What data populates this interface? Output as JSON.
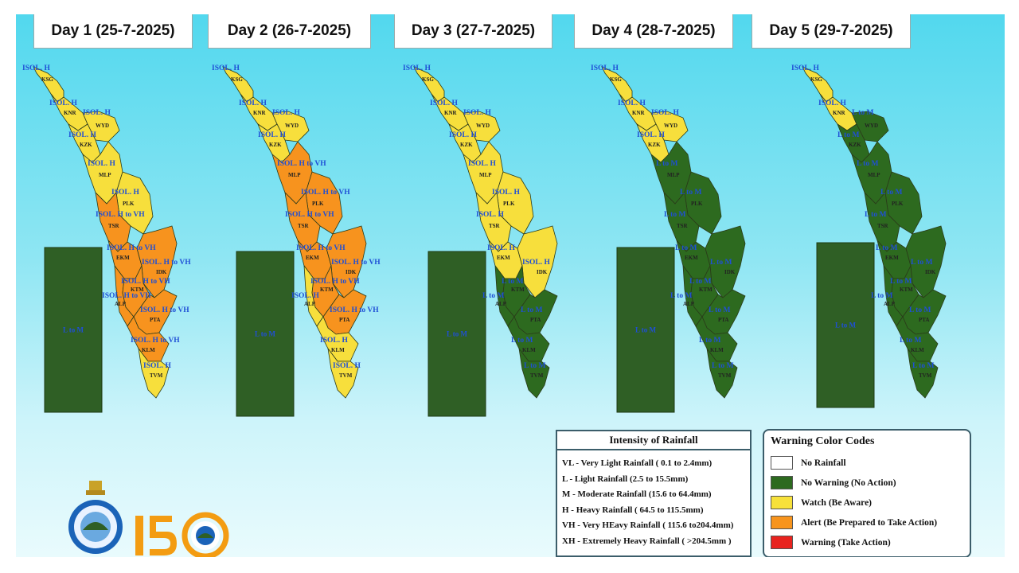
{
  "days": [
    {
      "title": "Day 1 (25-7-2025)",
      "sea_label": "L to M",
      "districts": [
        {
          "code": "KSG",
          "warn": "ISOL. H",
          "level": "watch"
        },
        {
          "code": "KNR",
          "warn": "ISOL. H",
          "level": "watch"
        },
        {
          "code": "WYD",
          "warn": "ISOL. H",
          "level": "watch"
        },
        {
          "code": "KZK",
          "warn": "ISOL. H",
          "level": "watch"
        },
        {
          "code": "MLP",
          "warn": "ISOL. H",
          "level": "watch"
        },
        {
          "code": "PLK",
          "warn": "ISOL. H",
          "level": "watch"
        },
        {
          "code": "TSR",
          "warn": "ISOL. H to VH",
          "level": "alert"
        },
        {
          "code": "EKM",
          "warn": "ISOL. H to VH",
          "level": "alert"
        },
        {
          "code": "IDK",
          "warn": "ISOL. H to VH",
          "level": "alert"
        },
        {
          "code": "KTM",
          "warn": "ISOL. H to VH",
          "level": "alert"
        },
        {
          "code": "ALP",
          "warn": "ISOL. H to VH",
          "level": "alert"
        },
        {
          "code": "PTA",
          "warn": "ISOL. H to VH",
          "level": "alert"
        },
        {
          "code": "KLM",
          "warn": "ISOL. H to VH",
          "level": "alert"
        },
        {
          "code": "TVM",
          "warn": "ISOL. H",
          "level": "watch"
        }
      ]
    },
    {
      "title": "Day 2 (26-7-2025)",
      "sea_label": "L to M",
      "districts": [
        {
          "code": "KSG",
          "warn": "ISOL. H",
          "level": "watch"
        },
        {
          "code": "KNR",
          "warn": "ISOL. H",
          "level": "watch"
        },
        {
          "code": "WYD",
          "warn": "ISOL. H",
          "level": "watch"
        },
        {
          "code": "KZK",
          "warn": "ISOL. H",
          "level": "watch"
        },
        {
          "code": "MLP",
          "warn": "ISOL. H to VH",
          "level": "alert"
        },
        {
          "code": "PLK",
          "warn": "ISOL. H to VH",
          "level": "alert"
        },
        {
          "code": "TSR",
          "warn": "ISOL. H to VH",
          "level": "alert"
        },
        {
          "code": "EKM",
          "warn": "ISOL. H to VH",
          "level": "alert"
        },
        {
          "code": "IDK",
          "warn": "ISOL. H to VH",
          "level": "alert"
        },
        {
          "code": "KTM",
          "warn": "ISOL. H to VH",
          "level": "alert"
        },
        {
          "code": "ALP",
          "warn": "ISOL. H",
          "level": "watch"
        },
        {
          "code": "PTA",
          "warn": "ISOL. H to VH",
          "level": "alert"
        },
        {
          "code": "KLM",
          "warn": "ISOL. H",
          "level": "watch"
        },
        {
          "code": "TVM",
          "warn": "ISOL. H",
          "level": "watch"
        }
      ]
    },
    {
      "title": "Day 3 (27-7-2025)",
      "sea_label": "L to M",
      "districts": [
        {
          "code": "KSG",
          "warn": "ISOL. H",
          "level": "watch"
        },
        {
          "code": "KNR",
          "warn": "ISOL. H",
          "level": "watch"
        },
        {
          "code": "WYD",
          "warn": "ISOL. H",
          "level": "watch"
        },
        {
          "code": "KZK",
          "warn": "ISOL. H",
          "level": "watch"
        },
        {
          "code": "MLP",
          "warn": "ISOL. H",
          "level": "watch"
        },
        {
          "code": "PLK",
          "warn": "ISOL. H",
          "level": "watch"
        },
        {
          "code": "TSR",
          "warn": "ISOL. H",
          "level": "watch"
        },
        {
          "code": "EKM",
          "warn": "ISOL. H",
          "level": "watch"
        },
        {
          "code": "IDK",
          "warn": "ISOL. H",
          "level": "watch"
        },
        {
          "code": "KTM",
          "warn": "L to M",
          "level": "nowarn"
        },
        {
          "code": "ALP",
          "warn": "L to M",
          "level": "nowarn"
        },
        {
          "code": "PTA",
          "warn": "L to M",
          "level": "nowarn"
        },
        {
          "code": "KLM",
          "warn": "L to M",
          "level": "nowarn"
        },
        {
          "code": "TVM",
          "warn": "L to M",
          "level": "nowarn"
        }
      ]
    },
    {
      "title": "Day 4 (28-7-2025)",
      "sea_label": "L to M",
      "districts": [
        {
          "code": "KSG",
          "warn": "ISOL. H",
          "level": "watch"
        },
        {
          "code": "KNR",
          "warn": "ISOL. H",
          "level": "watch"
        },
        {
          "code": "WYD",
          "warn": "ISOL. H",
          "level": "watch"
        },
        {
          "code": "KZK",
          "warn": "ISOL. H",
          "level": "watch"
        },
        {
          "code": "MLP",
          "warn": "L to M",
          "level": "nowarn"
        },
        {
          "code": "PLK",
          "warn": "L to M",
          "level": "nowarn"
        },
        {
          "code": "TSR",
          "warn": "L to M",
          "level": "nowarn"
        },
        {
          "code": "EKM",
          "warn": "L to M",
          "level": "nowarn"
        },
        {
          "code": "IDK",
          "warn": "L to M",
          "level": "nowarn"
        },
        {
          "code": "KTM",
          "warn": "L to M",
          "level": "nowarn"
        },
        {
          "code": "ALP",
          "warn": "L to M",
          "level": "nowarn"
        },
        {
          "code": "PTA",
          "warn": "L to M",
          "level": "nowarn"
        },
        {
          "code": "KLM",
          "warn": "L to M",
          "level": "nowarn"
        },
        {
          "code": "TVM",
          "warn": "L to M",
          "level": "nowarn"
        }
      ]
    },
    {
      "title": "Day 5 (29-7-2025)",
      "sea_label": "L to M",
      "districts": [
        {
          "code": "KSG",
          "warn": "ISOL. H",
          "level": "watch"
        },
        {
          "code": "KNR",
          "warn": "ISOL. H",
          "level": "watch"
        },
        {
          "code": "WYD",
          "warn": "L to M",
          "level": "nowarn"
        },
        {
          "code": "KZK",
          "warn": "L to M",
          "level": "nowarn"
        },
        {
          "code": "MLP",
          "warn": "L to M",
          "level": "nowarn"
        },
        {
          "code": "PLK",
          "warn": "L to M",
          "level": "nowarn"
        },
        {
          "code": "TSR",
          "warn": "L to M",
          "level": "nowarn"
        },
        {
          "code": "EKM",
          "warn": "L to M",
          "level": "nowarn"
        },
        {
          "code": "IDK",
          "warn": "L to M",
          "level": "nowarn"
        },
        {
          "code": "KTM",
          "warn": "L to M",
          "level": "nowarn"
        },
        {
          "code": "ALP",
          "warn": "L to M",
          "level": "nowarn"
        },
        {
          "code": "PTA",
          "warn": "L to M",
          "level": "nowarn"
        },
        {
          "code": "KLM",
          "warn": "L to M",
          "level": "nowarn"
        },
        {
          "code": "TVM",
          "warn": "L to M",
          "level": "nowarn"
        }
      ]
    }
  ],
  "intensity": {
    "title": "Intensity of Rainfall",
    "items": [
      "VL - Very Light Rainfall ( 0.1 to 2.4mm)",
      "L  - Light Rainfall (2.5 to 15.5mm)",
      "M  - Moderate Rainfall (15.6 to 64.4mm)",
      "H  - Heavy Rainfall ( 64.5 to 115.5mm)",
      "VH - Very HEavy Rainfall ( 115.6 to204.4mm)",
      "XH - Extremely Heavy Rainfall ( >204.5mm )"
    ]
  },
  "codes": {
    "title": "Warning Color Codes",
    "items": [
      {
        "label": "No Rainfall",
        "color": "#ffffff",
        "key": "norain"
      },
      {
        "label": "No Warning (No Action)",
        "color": "#2d6a1f",
        "key": "nowarn"
      },
      {
        "label": "Watch (Be Aware)",
        "color": "#f7e13a",
        "key": "watch"
      },
      {
        "label": "Alert (Be Prepared to Take Action)",
        "color": "#f7941d",
        "key": "alert"
      },
      {
        "label": "Warning (Take Action)",
        "color": "#e8231e",
        "key": "warning"
      }
    ]
  },
  "colors": {
    "nowarn": "#2d6a1f",
    "watch": "#f7df3c",
    "alert": "#f7931e",
    "sea": "#2f5f25",
    "border": "#2a3a1a"
  },
  "logos": [
    "imd-emblem",
    "imd-150-years-logo"
  ]
}
